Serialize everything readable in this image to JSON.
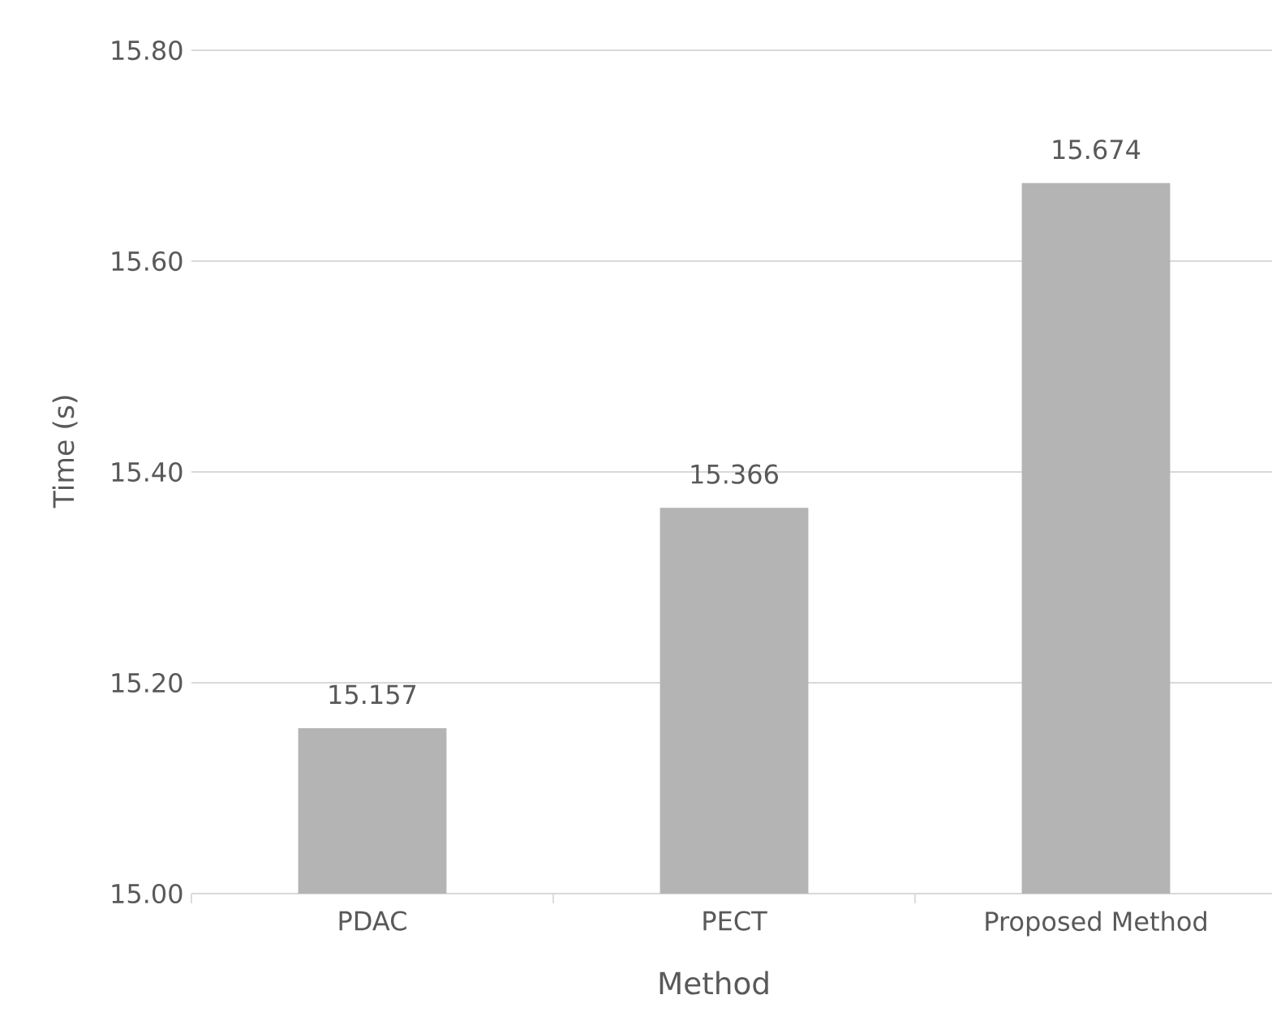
{
  "chart_data": {
    "type": "bar",
    "xlabel": "Method",
    "ylabel": "Time (s)",
    "categories": [
      "PDAC",
      "PECT",
      "Proposed Method"
    ],
    "values": [
      15.157,
      15.366,
      15.674
    ],
    "color": "#b4b4b4",
    "ylim": [
      15.0,
      15.8
    ],
    "yticks": [
      {
        "value": 15.0,
        "label": "15.00"
      },
      {
        "value": 15.2,
        "label": "15.20"
      },
      {
        "value": 15.4,
        "label": "15.40"
      },
      {
        "value": 15.6,
        "label": "15.60"
      },
      {
        "value": 15.8,
        "label": "15.80"
      }
    ],
    "grid": "y",
    "data_labels": true
  }
}
